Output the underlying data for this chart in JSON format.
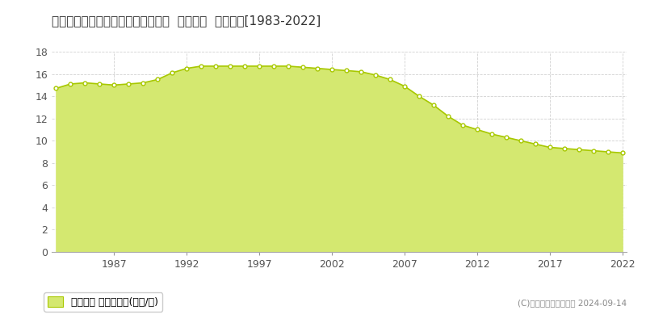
{
  "title": "福岡県大牟田市中町２丁目１０番４  地価公示  地価推移[1983-2022]",
  "years": [
    1983,
    1984,
    1985,
    1986,
    1987,
    1988,
    1989,
    1990,
    1991,
    1992,
    1993,
    1994,
    1995,
    1996,
    1997,
    1998,
    1999,
    2000,
    2001,
    2002,
    2003,
    2004,
    2005,
    2006,
    2007,
    2008,
    2009,
    2010,
    2011,
    2012,
    2013,
    2014,
    2015,
    2016,
    2017,
    2018,
    2019,
    2020,
    2021,
    2022
  ],
  "values": [
    14.7,
    15.1,
    15.2,
    15.1,
    15.0,
    15.1,
    15.2,
    15.5,
    16.1,
    16.5,
    16.7,
    16.7,
    16.7,
    16.7,
    16.7,
    16.7,
    16.7,
    16.6,
    16.5,
    16.4,
    16.3,
    16.2,
    15.9,
    15.5,
    14.9,
    14.0,
    13.2,
    12.2,
    11.4,
    11.0,
    10.6,
    10.3,
    10.0,
    9.7,
    9.4,
    9.3,
    9.2,
    9.1,
    9.0,
    8.9
  ],
  "line_color": "#a8c800",
  "fill_color": "#d4e870",
  "marker_color": "#ffffff",
  "marker_edge_color": "#a8c800",
  "bg_color": "#ffffff",
  "plot_bg_color": "#ffffff",
  "grid_color": "#cccccc",
  "ylim": [
    0,
    18
  ],
  "yticks": [
    0,
    2,
    4,
    6,
    8,
    10,
    12,
    14,
    16,
    18
  ],
  "xticks": [
    1987,
    1992,
    1997,
    2002,
    2007,
    2012,
    2017,
    2022
  ],
  "legend_label": "地価公示 平均坪単価(万円/坪)",
  "copyright_text": "(C)土地価格ドットコム 2024-09-14",
  "title_fontsize": 11,
  "axis_fontsize": 9,
  "legend_fontsize": 9
}
